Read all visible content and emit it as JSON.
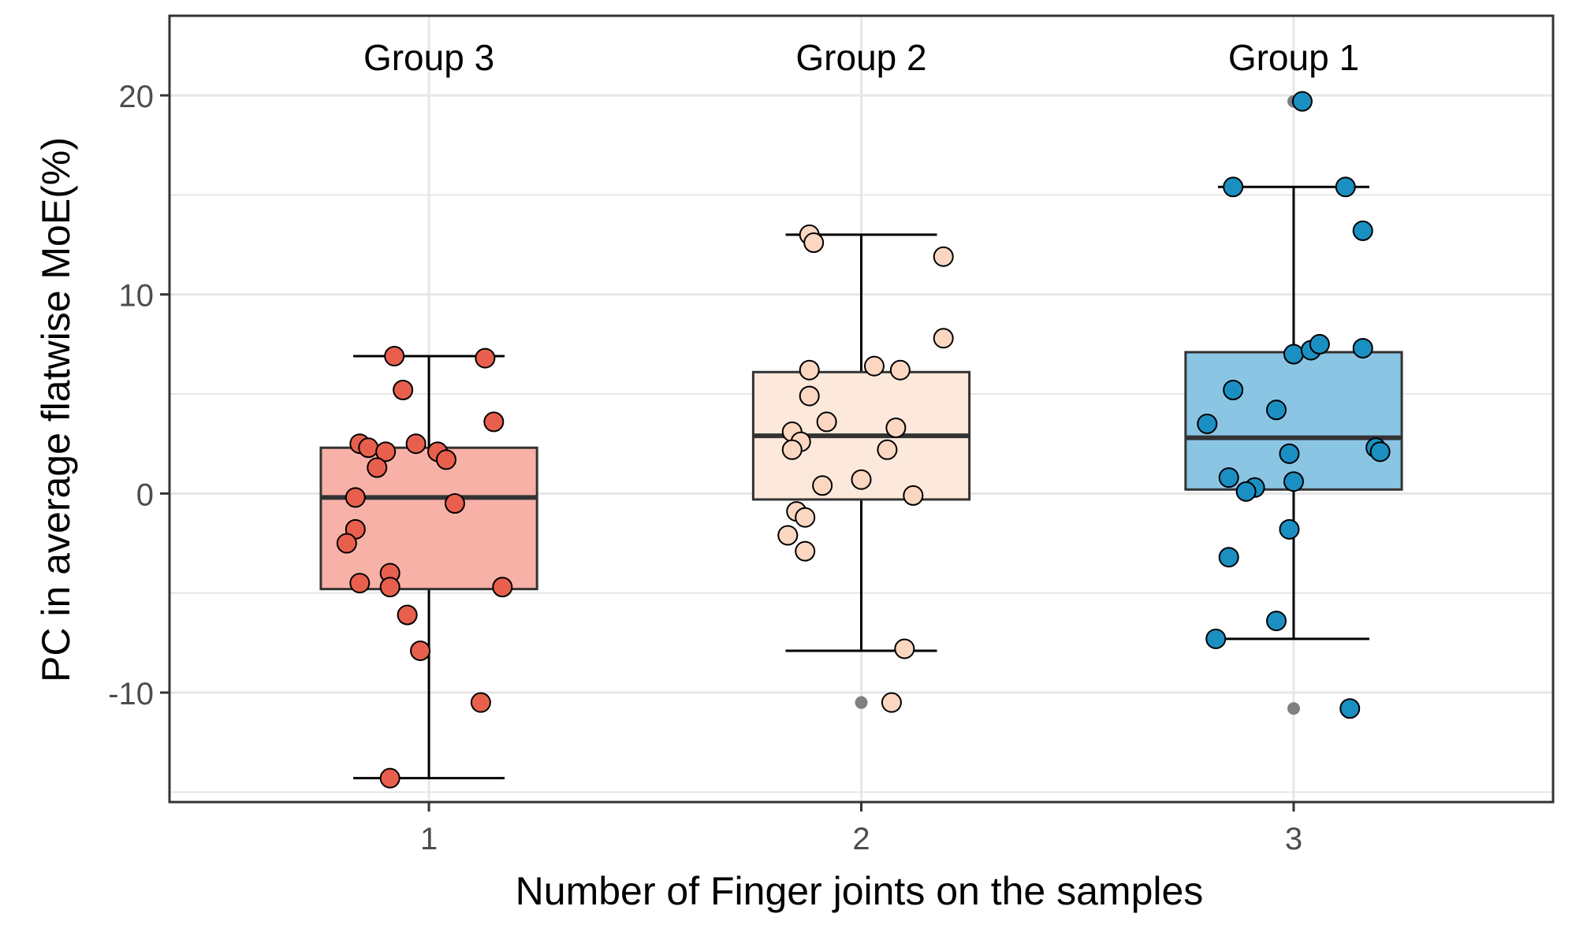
{
  "chart_data": {
    "type": "boxplot",
    "xlabel": "Number of Finger joints on the samples",
    "ylabel": "PC in average flatwise MoE(%)",
    "ylim": [
      -15.5,
      24
    ],
    "y_ticks": [
      -10,
      0,
      10,
      20
    ],
    "y_tick_labels": [
      "-10",
      "0",
      "10",
      "20"
    ],
    "grid": true,
    "categories": [
      "1",
      "2",
      "3"
    ],
    "group_labels": [
      "Group 3",
      "Group 2",
      "Group 1"
    ],
    "colors": {
      "fills": [
        "#f8b1a7",
        "#fde8dc",
        "#8bc5e4"
      ],
      "points": [
        "#e8604d",
        "#fbd7c2",
        "#1b8fc2"
      ],
      "outlier": "#808080",
      "grid": "#e6e6e6",
      "box_stroke": "#333333"
    },
    "boxes": [
      {
        "category": "1",
        "min": -14.3,
        "q1": -4.8,
        "median": -0.2,
        "q3": 2.3,
        "max": 6.9,
        "outliers": []
      },
      {
        "category": "2",
        "min": -7.9,
        "q1": -0.3,
        "median": 2.9,
        "q3": 6.1,
        "max": 13.0,
        "outliers": [
          -10.5
        ]
      },
      {
        "category": "3",
        "min": -7.3,
        "q1": 0.2,
        "median": 2.8,
        "q3": 7.1,
        "max": 15.4,
        "outliers": [
          19.7,
          -10.8
        ]
      }
    ],
    "points": [
      [
        {
          "x": 0.92,
          "y": 6.9
        },
        {
          "x": 1.13,
          "y": 6.8
        },
        {
          "x": 0.94,
          "y": 5.2
        },
        {
          "x": 1.15,
          "y": 3.6
        },
        {
          "x": 0.84,
          "y": 2.5
        },
        {
          "x": 0.86,
          "y": 2.3
        },
        {
          "x": 0.9,
          "y": 2.1
        },
        {
          "x": 0.97,
          "y": 2.5
        },
        {
          "x": 1.02,
          "y": 2.1
        },
        {
          "x": 1.04,
          "y": 1.7
        },
        {
          "x": 0.88,
          "y": 1.3
        },
        {
          "x": 0.83,
          "y": -0.2
        },
        {
          "x": 1.06,
          "y": -0.5
        },
        {
          "x": 0.83,
          "y": -1.8
        },
        {
          "x": 0.81,
          "y": -2.5
        },
        {
          "x": 0.91,
          "y": -4.0
        },
        {
          "x": 0.84,
          "y": -4.5
        },
        {
          "x": 0.91,
          "y": -4.7
        },
        {
          "x": 1.17,
          "y": -4.7
        },
        {
          "x": 0.95,
          "y": -6.1
        },
        {
          "x": 0.98,
          "y": -7.9
        },
        {
          "x": 1.12,
          "y": -10.5
        },
        {
          "x": 0.91,
          "y": -14.3
        }
      ],
      [
        {
          "x": 1.88,
          "y": 13.0
        },
        {
          "x": 1.89,
          "y": 12.6
        },
        {
          "x": 2.19,
          "y": 11.9
        },
        {
          "x": 2.19,
          "y": 7.8
        },
        {
          "x": 1.88,
          "y": 6.2
        },
        {
          "x": 2.03,
          "y": 6.4
        },
        {
          "x": 2.09,
          "y": 6.2
        },
        {
          "x": 1.88,
          "y": 4.9
        },
        {
          "x": 1.92,
          "y": 3.6
        },
        {
          "x": 2.08,
          "y": 3.3
        },
        {
          "x": 1.84,
          "y": 3.1
        },
        {
          "x": 1.86,
          "y": 2.6
        },
        {
          "x": 1.84,
          "y": 2.2
        },
        {
          "x": 2.06,
          "y": 2.2
        },
        {
          "x": 2.0,
          "y": 0.7
        },
        {
          "x": 1.91,
          "y": 0.4
        },
        {
          "x": 2.12,
          "y": -0.1
        },
        {
          "x": 1.85,
          "y": -0.9
        },
        {
          "x": 1.87,
          "y": -1.2
        },
        {
          "x": 1.83,
          "y": -2.1
        },
        {
          "x": 1.87,
          "y": -2.9
        },
        {
          "x": 2.1,
          "y": -7.8
        },
        {
          "x": 2.07,
          "y": -10.5
        }
      ],
      [
        {
          "x": 3.02,
          "y": 19.7
        },
        {
          "x": 2.86,
          "y": 15.4
        },
        {
          "x": 3.12,
          "y": 15.4
        },
        {
          "x": 3.16,
          "y": 13.2
        },
        {
          "x": 3.0,
          "y": 7.0
        },
        {
          "x": 3.04,
          "y": 7.2
        },
        {
          "x": 3.06,
          "y": 7.5
        },
        {
          "x": 3.16,
          "y": 7.3
        },
        {
          "x": 2.86,
          "y": 5.2
        },
        {
          "x": 2.96,
          "y": 4.2
        },
        {
          "x": 2.8,
          "y": 3.5
        },
        {
          "x": 3.19,
          "y": 2.3
        },
        {
          "x": 3.2,
          "y": 2.1
        },
        {
          "x": 2.99,
          "y": 2.0
        },
        {
          "x": 2.85,
          "y": 0.8
        },
        {
          "x": 3.0,
          "y": 0.6
        },
        {
          "x": 2.91,
          "y": 0.3
        },
        {
          "x": 2.89,
          "y": 0.1
        },
        {
          "x": 2.99,
          "y": -1.8
        },
        {
          "x": 2.85,
          "y": -3.2
        },
        {
          "x": 2.96,
          "y": -6.4
        },
        {
          "x": 2.82,
          "y": -7.3
        },
        {
          "x": 3.13,
          "y": -10.8
        }
      ]
    ]
  }
}
